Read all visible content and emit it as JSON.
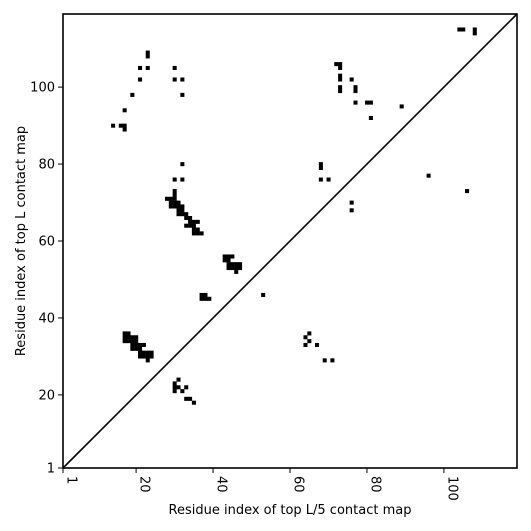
{
  "chart_data": {
    "type": "scatter",
    "title": "",
    "xlabel": "Residue index of top L/5 contact map",
    "ylabel": "Residue index of top L contact map",
    "xlim": [
      1,
      119
    ],
    "ylim": [
      1,
      119
    ],
    "xticks": [
      1,
      20,
      40,
      60,
      80,
      100
    ],
    "xtick_labels": [
      "1",
      "20",
      "40",
      "60",
      "80",
      "100"
    ],
    "yticks": [
      1,
      20,
      40,
      60,
      80,
      100
    ],
    "ytick_labels": [
      "1",
      "20",
      "40",
      "60",
      "80",
      "100"
    ],
    "x_tick_rotation_deg": 90,
    "grid": false,
    "legend": "none",
    "marker": "square",
    "marker_color": "#000000",
    "diagonal_line": true,
    "points_upper_triangle": [
      [
        14,
        90
      ],
      [
        16,
        90
      ],
      [
        17,
        90
      ],
      [
        17,
        89
      ],
      [
        17,
        94
      ],
      [
        19,
        98
      ],
      [
        21,
        102
      ],
      [
        21,
        105
      ],
      [
        23,
        108
      ],
      [
        23,
        109
      ],
      [
        23,
        105
      ],
      [
        30,
        105
      ],
      [
        30,
        102
      ],
      [
        32,
        102
      ],
      [
        32,
        98
      ],
      [
        32,
        80
      ],
      [
        30,
        76
      ],
      [
        32,
        76
      ],
      [
        28,
        71
      ],
      [
        29,
        71
      ],
      [
        30,
        71
      ],
      [
        29,
        70
      ],
      [
        30,
        70
      ],
      [
        31,
        70
      ],
      [
        29,
        69
      ],
      [
        30,
        69
      ],
      [
        31,
        69
      ],
      [
        32,
        69
      ],
      [
        31,
        68
      ],
      [
        32,
        68
      ],
      [
        31,
        67
      ],
      [
        32,
        67
      ],
      [
        30,
        72
      ],
      [
        30,
        73
      ],
      [
        33,
        67
      ],
      [
        33,
        66
      ],
      [
        34,
        66
      ],
      [
        34,
        65
      ],
      [
        35,
        65
      ],
      [
        36,
        65
      ],
      [
        33,
        64
      ],
      [
        34,
        64
      ],
      [
        35,
        64
      ],
      [
        35,
        63
      ],
      [
        36,
        63
      ],
      [
        35,
        62
      ],
      [
        36,
        62
      ],
      [
        37,
        62
      ],
      [
        37,
        46
      ],
      [
        38,
        46
      ],
      [
        37,
        45
      ],
      [
        38,
        45
      ],
      [
        39,
        45
      ],
      [
        43,
        56
      ],
      [
        44,
        56
      ],
      [
        45,
        56
      ],
      [
        43,
        55
      ],
      [
        44,
        55
      ],
      [
        44,
        54
      ],
      [
        45,
        54
      ],
      [
        46,
        54
      ],
      [
        47,
        54
      ],
      [
        44,
        53
      ],
      [
        45,
        53
      ],
      [
        46,
        53
      ],
      [
        47,
        53
      ],
      [
        46,
        52
      ],
      [
        53,
        46
      ],
      [
        72,
        106
      ],
      [
        73,
        106
      ],
      [
        73,
        105
      ],
      [
        73,
        103
      ],
      [
        73,
        102
      ],
      [
        73,
        100
      ],
      [
        73,
        99
      ],
      [
        76,
        102
      ],
      [
        77,
        100
      ],
      [
        77,
        99
      ],
      [
        77,
        96
      ],
      [
        80,
        96
      ],
      [
        81,
        96
      ],
      [
        81,
        92
      ],
      [
        89,
        95
      ],
      [
        68,
        80
      ],
      [
        68,
        79
      ],
      [
        68,
        76
      ],
      [
        70,
        76
      ],
      [
        104,
        115
      ],
      [
        105,
        115
      ],
      [
        108,
        115
      ],
      [
        108,
        114
      ]
    ],
    "points_lower_triangle": [
      [
        17,
        36
      ],
      [
        18,
        36
      ],
      [
        17,
        35
      ],
      [
        18,
        35
      ],
      [
        19,
        35
      ],
      [
        20,
        35
      ],
      [
        17,
        34
      ],
      [
        18,
        34
      ],
      [
        19,
        34
      ],
      [
        20,
        34
      ],
      [
        19,
        33
      ],
      [
        20,
        33
      ],
      [
        21,
        33
      ],
      [
        22,
        33
      ],
      [
        19,
        32
      ],
      [
        20,
        32
      ],
      [
        21,
        32
      ],
      [
        21,
        31
      ],
      [
        22,
        31
      ],
      [
        23,
        31
      ],
      [
        24,
        31
      ],
      [
        21,
        30
      ],
      [
        22,
        30
      ],
      [
        23,
        30
      ],
      [
        24,
        30
      ],
      [
        23,
        29
      ],
      [
        30,
        23
      ],
      [
        31,
        24
      ],
      [
        30,
        22
      ],
      [
        31,
        22
      ],
      [
        33,
        22
      ],
      [
        30,
        21
      ],
      [
        32,
        21
      ],
      [
        33,
        19
      ],
      [
        34,
        19
      ],
      [
        35,
        18
      ],
      [
        64,
        35
      ],
      [
        65,
        36
      ],
      [
        65,
        34
      ],
      [
        64,
        33
      ],
      [
        67,
        33
      ],
      [
        69,
        29
      ],
      [
        71,
        29
      ],
      [
        76,
        70
      ],
      [
        76,
        68
      ],
      [
        96,
        77
      ],
      [
        106,
        73
      ]
    ]
  }
}
